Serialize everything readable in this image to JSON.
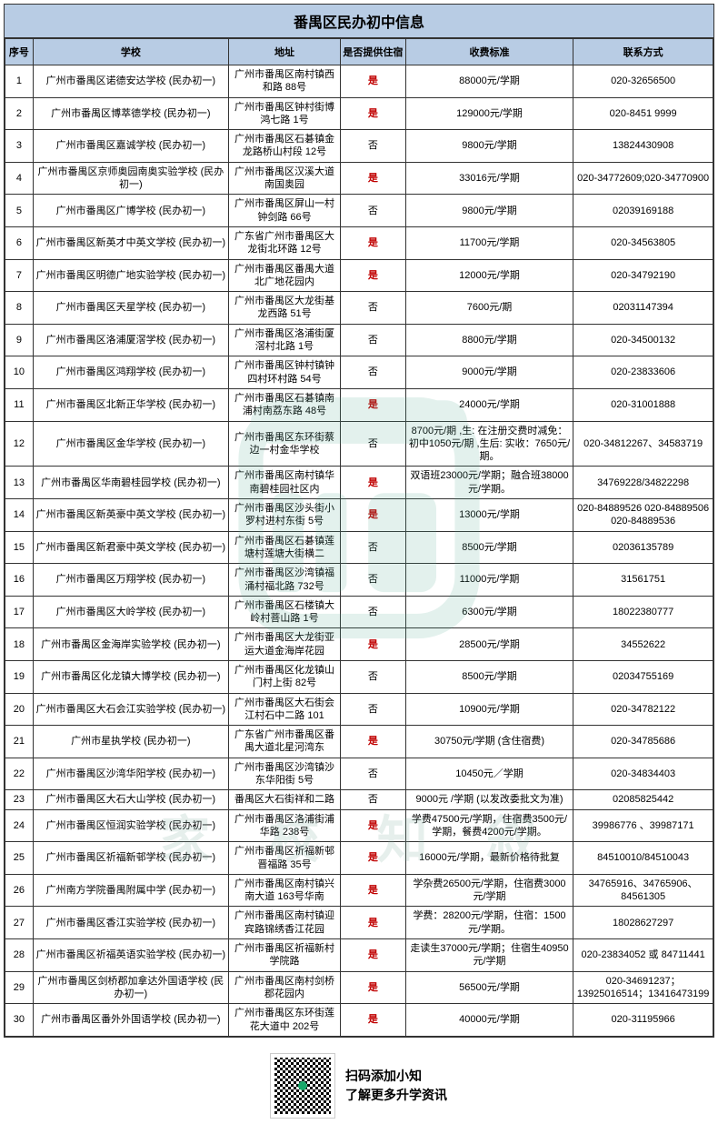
{
  "title": "番禺区民办初中信息",
  "columns": [
    "序号",
    "学校",
    "地址",
    "是否提供住宿",
    "收费标准",
    "联系方式"
  ],
  "dorm_yes": "是",
  "dorm_no": "否",
  "rows": [
    {
      "idx": "1",
      "school": "广州市番禺区诺德安达学校 (民办初一)",
      "addr": "广州市番禺区南村镇西和路 88号",
      "dorm": true,
      "fee": "88000元/学期",
      "contact": "020-32656500"
    },
    {
      "idx": "2",
      "school": "广州市番禺区博萃德学校 (民办初一)",
      "addr": "广州市番禺区钟村街博鸿七路 1号",
      "dorm": true,
      "fee": "129000元/学期",
      "contact": "020-8451 9999"
    },
    {
      "idx": "3",
      "school": "广州市番禺区嘉诚学校 (民办初一)",
      "addr": "广州市番禺区石碁镇金龙路桥山村段 12号",
      "dorm": false,
      "fee": "9800元/学期",
      "contact": "13824430908"
    },
    {
      "idx": "4",
      "school": "广州市番禺区京师奥园南奥实验学校 (民办初一)",
      "addr": "广州市番禺区汉溪大道南国奥园",
      "dorm": true,
      "fee": "33016元/学期",
      "contact": "020-34772609;020-34770900"
    },
    {
      "idx": "5",
      "school": "广州市番禺区广博学校 (民办初一)",
      "addr": "广州市番禺区屏山一村钟剑路 66号",
      "dorm": false,
      "fee": "9800元/学期",
      "contact": "02039169188"
    },
    {
      "idx": "6",
      "school": "广州市番禺区新英才中英文学校 (民办初一)",
      "addr": "广东省广州市番禺区大龙街北环路 12号",
      "dorm": true,
      "fee": "11700元/学期",
      "contact": "020-34563805"
    },
    {
      "idx": "7",
      "school": "广州市番禺区明德广地实验学校 (民办初一)",
      "addr": "广州市番禺区番禺大道北广地花园内",
      "dorm": true,
      "fee": "12000元/学期",
      "contact": "020-34792190"
    },
    {
      "idx": "8",
      "school": "广州市番禺区天星学校 (民办初一)",
      "addr": "广州市番禺区大龙街基龙西路 51号",
      "dorm": false,
      "fee": "7600元/期",
      "contact": "02031147394"
    },
    {
      "idx": "9",
      "school": "广州市番禺区洛浦厦滘学校 (民办初一)",
      "addr": "广州市番禺区洛浦街厦滘村北路 1号",
      "dorm": false,
      "fee": "8800元/学期",
      "contact": "020-34500132"
    },
    {
      "idx": "10",
      "school": "广州市番禺区鸿翔学校 (民办初一)",
      "addr": "广州市番禺区钟村镇钟四村环村路 54号",
      "dorm": false,
      "fee": "9000元/学期",
      "contact": "020-23833606"
    },
    {
      "idx": "11",
      "school": "广州市番禺区北新正华学校 (民办初一)",
      "addr": "广州市番禺区石碁镇南浦村南荔东路 48号",
      "dorm": true,
      "fee": "24000元/学期",
      "contact": "020-31001888"
    },
    {
      "idx": "12",
      "school": "广州市番禺区金华学校 (民办初一)",
      "addr": "广州市番禺区东环街蔡边一村金华学校",
      "dorm": false,
      "fee": "8700元/期 ,生: 在注册交费时减免：初中1050元/期 ,生后: 实收：7650元/期。",
      "contact": "020-34812267、34583719"
    },
    {
      "idx": "13",
      "school": "广州市番禺区华南碧桂园学校 (民办初一)",
      "addr": "广州市番禺区南村镇华南碧桂园社区内",
      "dorm": true,
      "fee": "双语班23000元/学期；融合班38000元/学期。",
      "contact": "34769228/34822298"
    },
    {
      "idx": "14",
      "school": "广州市番禺区新英豪中英文学校 (民办初一)",
      "addr": "广州市番禺区沙头街小罗村进村东街 5号",
      "dorm": true,
      "fee": "13000元/学期",
      "contact": "020-84889526   020-84889506 020-84889536"
    },
    {
      "idx": "15",
      "school": "广州市番禺区新君豪中英文学校 (民办初一)",
      "addr": "广州市番禺区石碁镇莲塘村莲塘大街横二",
      "dorm": false,
      "fee": "8500元/学期",
      "contact": "02036135789"
    },
    {
      "idx": "16",
      "school": "广州市番禺区万翔学校 (民办初一)",
      "addr": "广州市番禺区沙湾镇福涌村福北路 732号",
      "dorm": false,
      "fee": "11000元/学期",
      "contact": "31561751"
    },
    {
      "idx": "17",
      "school": "广州市番禺区大岭学校 (民办初一)",
      "addr": "广州市番禺区石楼镇大岭村菩山路 1号",
      "dorm": false,
      "fee": "6300元/学期",
      "contact": "18022380777"
    },
    {
      "idx": "18",
      "school": "广州市番禺区金海岸实验学校 (民办初一)",
      "addr": "广州市番禺区大龙街亚运大道金海岸花园",
      "dorm": true,
      "fee": "28500元/学期",
      "contact": "34552622"
    },
    {
      "idx": "19",
      "school": "广州市番禺区化龙镇大博学校 (民办初一)",
      "addr": "广州市番禺区化龙镇山门村上街 82号",
      "dorm": false,
      "fee": "8500元/学期",
      "contact": "02034755169"
    },
    {
      "idx": "20",
      "school": "广州市番禺区大石会江实验学校 (民办初一)",
      "addr": "广州市番禺区大石街会江村石中二路 101",
      "dorm": false,
      "fee": "10900元/学期",
      "contact": "020-34782122"
    },
    {
      "idx": "21",
      "school": "广州市星执学校 (民办初一)",
      "addr": "广东省广州市番禺区番禺大道北星河湾东",
      "dorm": true,
      "fee": "30750元/学期 (含住宿费)",
      "contact": "020-34785686"
    },
    {
      "idx": "22",
      "school": "广州市番禺区沙湾华阳学校 (民办初一)",
      "addr": "广州市番禺区沙湾镇沙东华阳街 5号",
      "dorm": false,
      "fee": "10450元／学期",
      "contact": "020-34834403"
    },
    {
      "idx": "23",
      "school": "广州市番禺区大石大山学校 (民办初一)",
      "addr": "番禺区大石街祥和二路",
      "dorm": false,
      "fee": "9000元 /学期 (以发改委批文为准)",
      "contact": "02085825442"
    },
    {
      "idx": "24",
      "school": "广州市番禺区恒润实验学校 (民办初一)",
      "addr": "广州市番禺区洛浦街浦华路 238号",
      "dorm": true,
      "fee": "学费47500元/学期，住宿费3500元/学期，餐费4200元/学期。",
      "contact": "39986776 、39987171"
    },
    {
      "idx": "25",
      "school": "广州市番禺区祈福新邨学校 (民办初一)",
      "addr": "广州市番禺区祈福新邨晋福路 35号",
      "dorm": true,
      "fee": "16000元/学期，最新价格待批复",
      "contact": "84510010/84510043"
    },
    {
      "idx": "26",
      "school": "广州南方学院番禺附属中学 (民办初一)",
      "addr": "广州市番禺区南村镇兴南大道 163号华南",
      "dorm": true,
      "fee": "学杂费26500元/学期，住宿费3000元/学期",
      "contact": "34765916、34765906、84561305"
    },
    {
      "idx": "27",
      "school": "广州市番禺区香江实验学校 (民办初一)",
      "addr": "广州市番禺区南村镇迎宾路锦绣香江花园",
      "dorm": true,
      "fee": "学费：28200元/学期，住宿：1500元/学期。",
      "contact": "18028627297"
    },
    {
      "idx": "28",
      "school": "广州市番禺区祈福英语实验学校 (民办初一)",
      "addr": "广州市番禺区祈福新村学院路",
      "dorm": true,
      "fee": "走读生37000元/学期；住宿生40950元/学期",
      "contact": "020-23834052 或 84711441"
    },
    {
      "idx": "29",
      "school": "广州市番禺区剑桥郡加拿达外国语学校 (民办初一)",
      "addr": "广州市番禺区南村剑桥郡花园内",
      "dorm": true,
      "fee": "56500元/学期",
      "contact": "020-34691237；13925016514；13416473199"
    },
    {
      "idx": "30",
      "school": "广州市番禺区番外外国语学校 (民办初一)",
      "addr": "广州市番禺区东环街莲花大道中 202号",
      "dorm": true,
      "fee": "40000元/学期",
      "contact": "020-31195966"
    }
  ],
  "footer": {
    "line1": "扫码添加小知",
    "line2": "了解更多升学资讯"
  },
  "colors": {
    "header_bg": "#b8cce4",
    "border": "#333333",
    "yes": "#c00000",
    "watermark": "#4aa48a"
  }
}
